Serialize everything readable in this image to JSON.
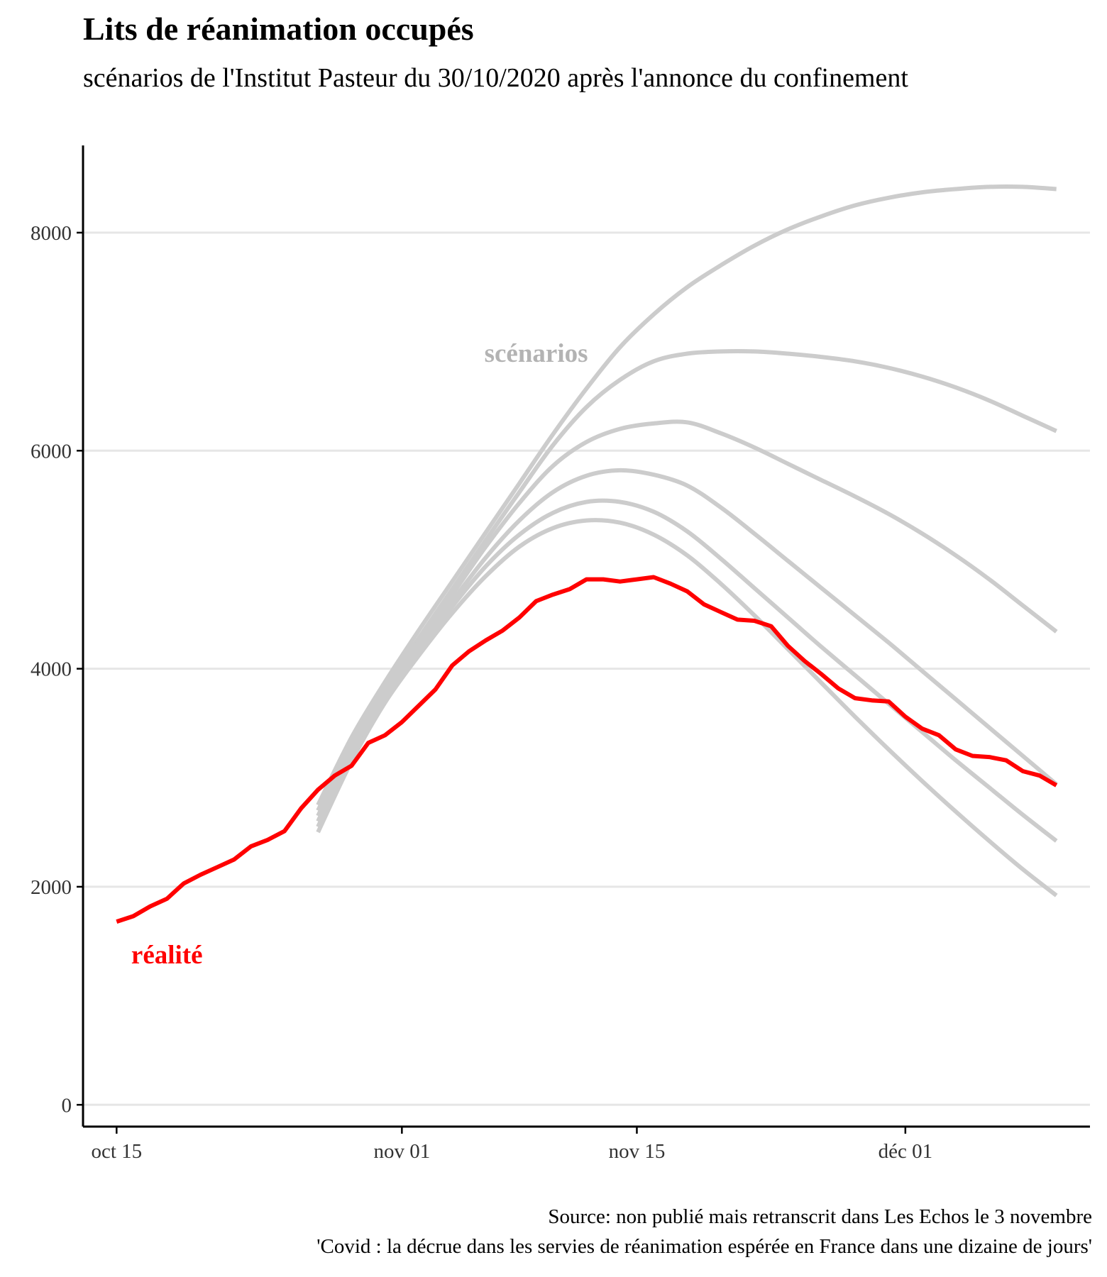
{
  "title": "Lits de réanimation occupés",
  "subtitle": "scénarios de l'Institut Pasteur du 30/10/2020 après l'annonce du confinement",
  "caption": {
    "line1": "Source: non publié mais retranscrit dans Les Echos le 3 novembre",
    "line2": "'Covid : la décrue dans les servies de réanimation espérée en France dans une dizaine de jours'"
  },
  "chart_data": {
    "type": "line",
    "x_unit": "date (2020)",
    "xlim": [
      "2020-10-13",
      "2020-12-12"
    ],
    "ylim": [
      -200,
      8800
    ],
    "y_ticks": [
      0,
      2000,
      4000,
      6000,
      8000
    ],
    "x_ticks": [
      {
        "date": "2020-10-15",
        "label": "oct 15"
      },
      {
        "date": "2020-11-01",
        "label": "nov 01"
      },
      {
        "date": "2020-11-15",
        "label": "nov 15"
      },
      {
        "date": "2020-12-01",
        "label": "déc 01"
      }
    ],
    "grid": {
      "horizontal": true,
      "vertical": false
    },
    "colors": {
      "reality": "#ff0000",
      "scenarios": "#cccccc",
      "grid": "#e6e6e6",
      "axis": "#000000"
    },
    "labels": {
      "reality": "réalité",
      "scenarios": "scénarios"
    },
    "reality": {
      "x": [
        "2020-10-15",
        "2020-10-16",
        "2020-10-17",
        "2020-10-18",
        "2020-10-19",
        "2020-10-20",
        "2020-10-21",
        "2020-10-22",
        "2020-10-23",
        "2020-10-24",
        "2020-10-25",
        "2020-10-26",
        "2020-10-27",
        "2020-10-28",
        "2020-10-29",
        "2020-10-30",
        "2020-10-31",
        "2020-11-01",
        "2020-11-02",
        "2020-11-03",
        "2020-11-04",
        "2020-11-05",
        "2020-11-06",
        "2020-11-07",
        "2020-11-08",
        "2020-11-09",
        "2020-11-10",
        "2020-11-11",
        "2020-11-12",
        "2020-11-13",
        "2020-11-14",
        "2020-11-15",
        "2020-11-16",
        "2020-11-17",
        "2020-11-18",
        "2020-11-19",
        "2020-11-20",
        "2020-11-21",
        "2020-11-22",
        "2020-11-23",
        "2020-11-24",
        "2020-11-25",
        "2020-11-26",
        "2020-11-27",
        "2020-11-28",
        "2020-11-29",
        "2020-11-30",
        "2020-12-01",
        "2020-12-02",
        "2020-12-03",
        "2020-12-04",
        "2020-12-05",
        "2020-12-06",
        "2020-12-07",
        "2020-12-08",
        "2020-12-09",
        "2020-12-10"
      ],
      "y": [
        1680,
        1730,
        1820,
        1890,
        2030,
        2110,
        2180,
        2250,
        2370,
        2430,
        2510,
        2720,
        2890,
        3020,
        3110,
        3320,
        3390,
        3510,
        3660,
        3810,
        4030,
        4160,
        4260,
        4350,
        4470,
        4620,
        4680,
        4730,
        4820,
        4820,
        4800,
        4820,
        4840,
        4780,
        4710,
        4590,
        4520,
        4450,
        4440,
        4390,
        4210,
        4070,
        3950,
        3820,
        3730,
        3710,
        3700,
        3560,
        3450,
        3390,
        3260,
        3200,
        3190,
        3160,
        3060,
        3020,
        2930
      ]
    },
    "scenarios": {
      "x": [
        "2020-10-27",
        "2020-10-29",
        "2020-10-31",
        "2020-11-02",
        "2020-11-04",
        "2020-11-06",
        "2020-11-08",
        "2020-11-10",
        "2020-11-12",
        "2020-11-14",
        "2020-11-16",
        "2020-11-18",
        "2020-11-20",
        "2020-11-22",
        "2020-11-24",
        "2020-11-26",
        "2020-11-28",
        "2020-11-30",
        "2020-12-02",
        "2020-12-04",
        "2020-12-06",
        "2020-12-08",
        "2020-12-10"
      ],
      "series": [
        {
          "y": [
            2750,
            3370,
            3880,
            4350,
            4800,
            5250,
            5700,
            6150,
            6570,
            6950,
            7250,
            7500,
            7700,
            7880,
            8030,
            8150,
            8250,
            8320,
            8370,
            8400,
            8420,
            8420,
            8400
          ]
        },
        {
          "y": [
            2700,
            3320,
            3830,
            4280,
            4730,
            5180,
            5620,
            6050,
            6400,
            6650,
            6820,
            6890,
            6910,
            6910,
            6890,
            6860,
            6820,
            6760,
            6680,
            6580,
            6460,
            6320,
            6180
          ]
        },
        {
          "y": [
            2650,
            3290,
            3810,
            4250,
            4680,
            5120,
            5520,
            5860,
            6080,
            6200,
            6250,
            6260,
            6160,
            6030,
            5880,
            5730,
            5580,
            5420,
            5240,
            5040,
            4820,
            4580,
            4340
          ]
        },
        {
          "y": [
            2600,
            3250,
            3770,
            4200,
            4620,
            5020,
            5360,
            5620,
            5770,
            5820,
            5780,
            5680,
            5480,
            5240,
            4990,
            4740,
            4490,
            4240,
            3980,
            3720,
            3460,
            3200,
            2940
          ]
        },
        {
          "y": [
            2550,
            3200,
            3730,
            4160,
            4570,
            4940,
            5230,
            5430,
            5530,
            5530,
            5440,
            5260,
            5010,
            4740,
            4470,
            4200,
            3940,
            3680,
            3420,
            3160,
            2910,
            2660,
            2420
          ]
        },
        {
          "y": [
            2500,
            3150,
            3690,
            4120,
            4510,
            4850,
            5120,
            5290,
            5360,
            5340,
            5230,
            5040,
            4780,
            4490,
            4180,
            3870,
            3560,
            3260,
            2970,
            2690,
            2420,
            2160,
            1920
          ]
        }
      ]
    }
  }
}
